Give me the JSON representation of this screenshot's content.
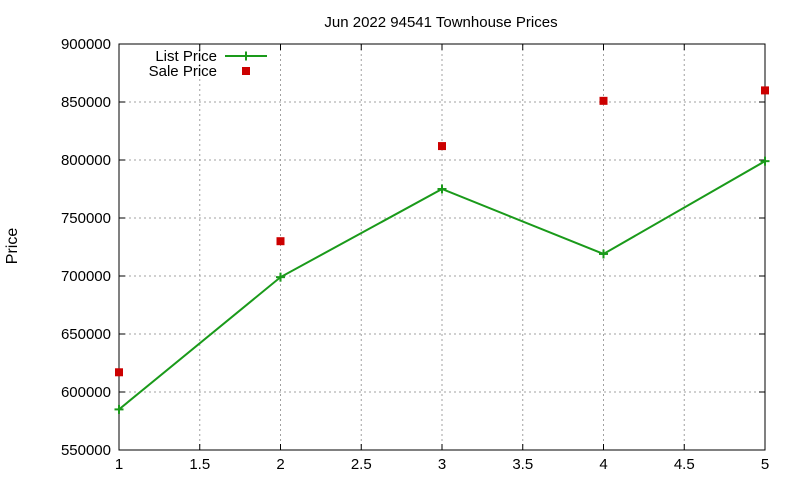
{
  "chart_data": {
    "type": "line",
    "title": "Jun 2022 94541 Townhouse Prices",
    "xlabel": "",
    "ylabel": "Price",
    "x": [
      1,
      2,
      3,
      4,
      5
    ],
    "xlim": [
      1,
      5
    ],
    "ylim": [
      550000,
      900000
    ],
    "x_ticks": [
      "1",
      "1.5",
      "2",
      "2.5",
      "3",
      "3.5",
      "4",
      "4.5",
      "5"
    ],
    "y_ticks": [
      "550000",
      "600000",
      "650000",
      "700000",
      "750000",
      "800000",
      "850000",
      "900000"
    ],
    "grid": true,
    "legend_position": "top-left",
    "series": [
      {
        "name": "List Price",
        "style": "line-with-plus-markers",
        "color": "#1a9a1a",
        "values": [
          585000,
          699000,
          775000,
          719000,
          799000
        ]
      },
      {
        "name": "Sale Price",
        "style": "square-markers",
        "color": "#cc0000",
        "values": [
          617000,
          730000,
          812000,
          851000,
          860000
        ]
      }
    ]
  }
}
